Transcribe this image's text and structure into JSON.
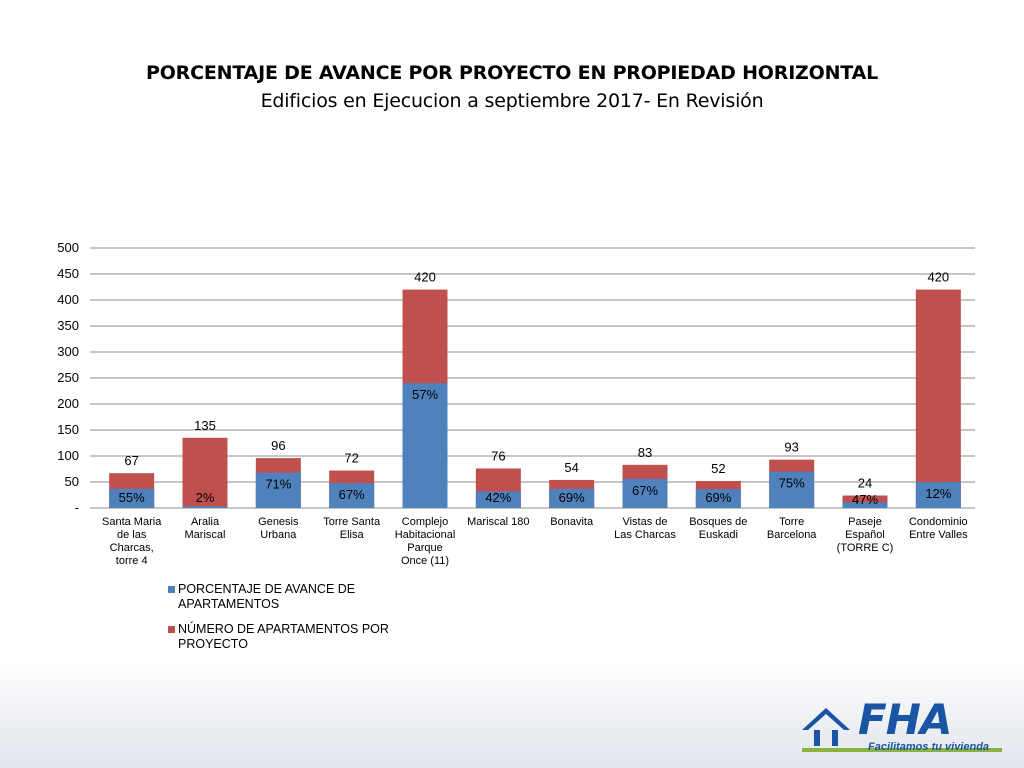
{
  "title": "PORCENTAJE DE AVANCE POR PROYECTO EN PROPIEDAD HORIZONTAL",
  "subtitle": "Edificios en Ejecucion a septiembre 2017- En Revisión",
  "colors": {
    "blue": "#4f81bd",
    "red": "#c0504d",
    "grid": "#8c8c8c",
    "logo_blue": "#1a55a3",
    "logo_green": "#8bb23f"
  },
  "logo": {
    "text": "FHA",
    "tagline": "Facilitamos tu vivienda"
  },
  "chart_data": {
    "type": "bar",
    "stacked": true,
    "categories": [
      [
        "Santa Maria",
        "de las",
        "Charcas,",
        "torre 4"
      ],
      [
        "Aralia",
        "Mariscal"
      ],
      [
        "Genesis",
        "Urbana"
      ],
      [
        "Torre Santa",
        "Elisa"
      ],
      [
        "Complejo",
        "Habitacional",
        "Parque",
        "Once (11)"
      ],
      [
        "Mariscal 180"
      ],
      [
        "Bonavita"
      ],
      [
        "Vistas de",
        "Las Charcas"
      ],
      [
        "Bosques de",
        "Euskadi"
      ],
      [
        "Torre",
        "Barcelona"
      ],
      [
        "Paseje",
        "Español",
        "(TORRE C)"
      ],
      [
        "Condominio",
        "Entre Valles"
      ]
    ],
    "series": [
      {
        "name": "PORCENTAJE DE AVANCE DE APARTAMENTOS",
        "labels": [
          "55%",
          "2%",
          "71%",
          "67%",
          "57%",
          "42%",
          "69%",
          "67%",
          "69%",
          "75%",
          "47%",
          "12%"
        ],
        "values": [
          37,
          3,
          68,
          48,
          240,
          32,
          37,
          56,
          36,
          70,
          11,
          50
        ]
      },
      {
        "name": "NÚMERO DE APARTAMENTOS POR PROYECTO",
        "totals": [
          67,
          135,
          96,
          72,
          420,
          76,
          54,
          83,
          52,
          93,
          24,
          420
        ]
      }
    ],
    "ylim": [
      0,
      500
    ],
    "yticks": [
      0,
      50,
      100,
      150,
      200,
      250,
      300,
      350,
      400,
      450,
      500
    ],
    "ytick_labels": [
      "-",
      "50",
      "100",
      "150",
      "200",
      "250",
      "300",
      "350",
      "400",
      "450",
      "500"
    ],
    "grid": true,
    "legend": "bottom-left",
    "legend_lines": [
      [
        "PORCENTAJE DE AVANCE DE",
        "APARTAMENTOS"
      ],
      [
        "NÚMERO DE APARTAMENTOS POR",
        "PROYECTO"
      ]
    ]
  }
}
